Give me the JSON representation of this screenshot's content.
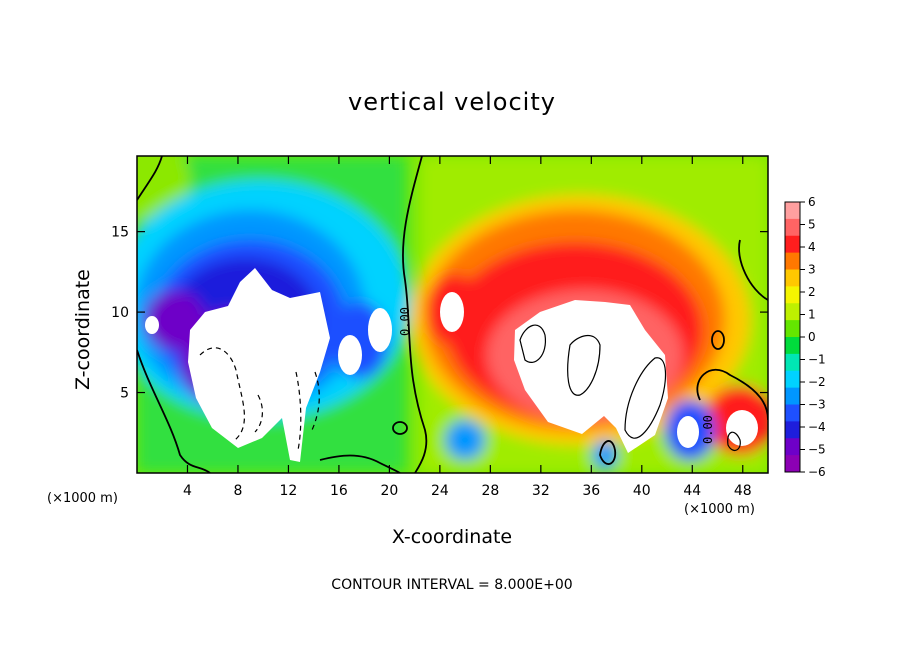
{
  "chart_data": {
    "type": "heatmap",
    "title": "vertical velocity",
    "xlabel": "X-coordinate",
    "ylabel": "Z-coordinate",
    "x_unit_label": "(×1000 m)",
    "xlim": [
      0,
      50
    ],
    "ylim": [
      0,
      19.7
    ],
    "x_ticks": [
      4,
      8,
      12,
      16,
      20,
      24,
      28,
      32,
      36,
      40,
      44,
      48
    ],
    "y_ticks": [
      5,
      10,
      15
    ],
    "colorbar": {
      "ticks": [
        6,
        5,
        4,
        3,
        2,
        1,
        0,
        -1,
        -2,
        -3,
        -4,
        -5,
        -6
      ],
      "tick_labels": [
        "6",
        "5",
        "4",
        "3",
        "2",
        "1",
        "0",
        "−1",
        "−2",
        "−3",
        "−4",
        "−5",
        "−6"
      ],
      "colors": [
        "#ff9f9f",
        "#ff6464",
        "#ff1e1e",
        "#ff7800",
        "#ffc800",
        "#f5f500",
        "#bef000",
        "#64e600",
        "#00dc3c",
        "#00e6b4",
        "#00d2ff",
        "#0096ff",
        "#1e50ff",
        "#1e1edc",
        "#6e00c8",
        "#8c00b4"
      ]
    },
    "contour_labels": [
      "0.00",
      "0.00"
    ],
    "contour_interval_text": "CONTOUR INTERVAL =  8.000E+00"
  }
}
